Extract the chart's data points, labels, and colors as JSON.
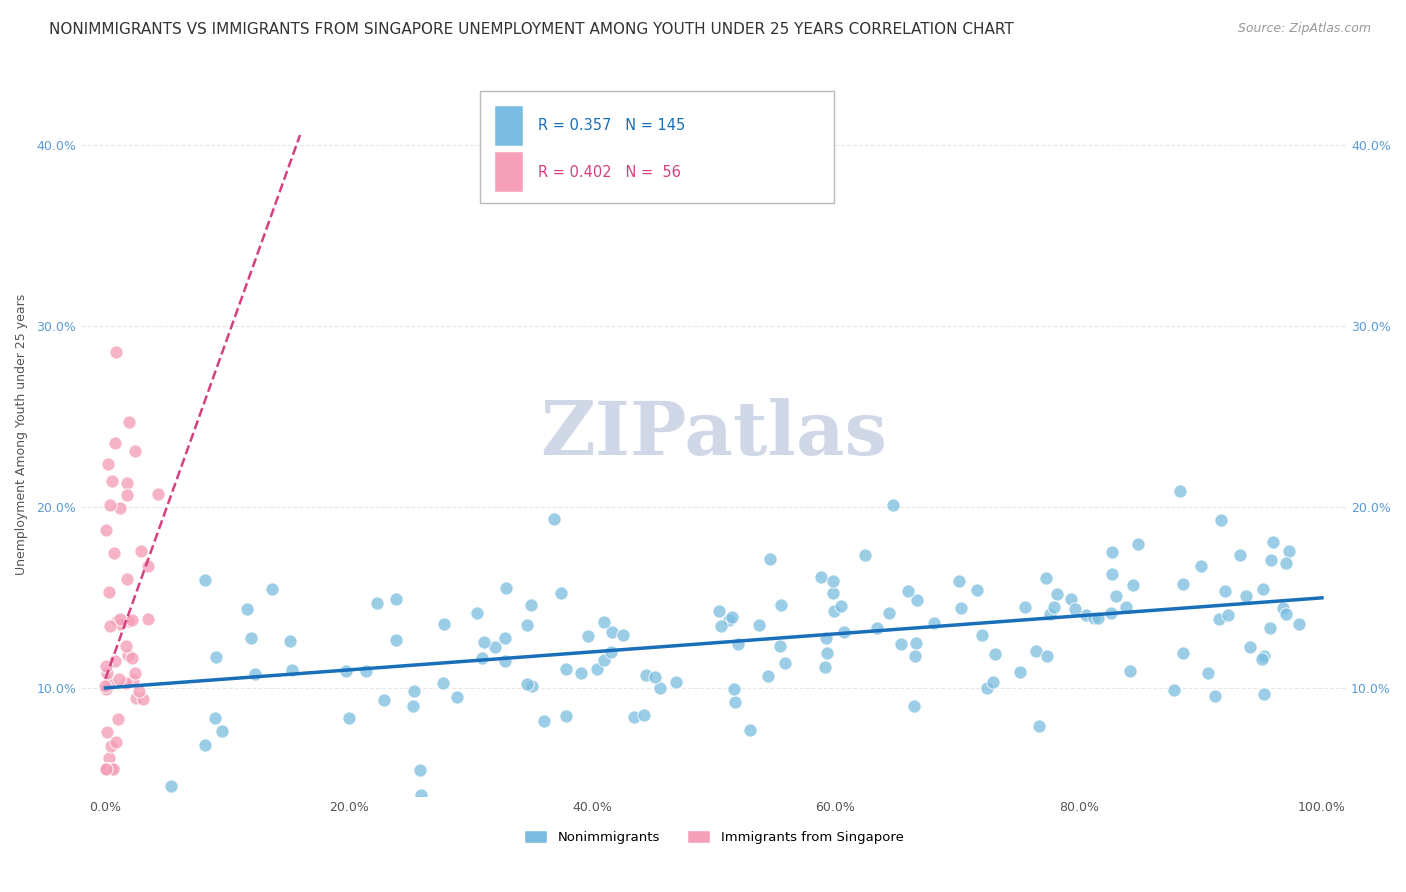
{
  "title": "NONIMMIGRANTS VS IMMIGRANTS FROM SINGAPORE UNEMPLOYMENT AMONG YOUTH UNDER 25 YEARS CORRELATION CHART",
  "source": "Source: ZipAtlas.com",
  "ylabel": "Unemployment Among Youth under 25 years",
  "xlim": [
    -0.02,
    1.02
  ],
  "ylim": [
    0.04,
    0.44
  ],
  "yticks": [
    0.1,
    0.2,
    0.3,
    0.4
  ],
  "ytick_labels": [
    "10.0%",
    "20.0%",
    "30.0%",
    "40.0%"
  ],
  "xticks": [
    0.0,
    0.2,
    0.4,
    0.6,
    0.8,
    1.0
  ],
  "xtick_labels": [
    "0.0%",
    "20.0%",
    "40.0%",
    "60.0%",
    "80.0%",
    "100.0%"
  ],
  "blue_color": "#7bbde0",
  "pink_color": "#f4a0b8",
  "blue_line_color": "#1a6fba",
  "pink_line_color": "#d44080",
  "watermark": "ZIPatlas",
  "watermark_color": "#d0d8e8",
  "R1": 0.357,
  "N1": 145,
  "R2": 0.402,
  "N2": 56,
  "blue_seed": 7,
  "pink_seed": 13,
  "title_fontsize": 11,
  "source_fontsize": 9,
  "label_fontsize": 9,
  "tick_fontsize": 9,
  "tick_color_y": "#5b9bd5",
  "tick_color_x": "#555555",
  "legend_color1": "#7bbde0",
  "legend_color2": "#f4a0b8",
  "legend_text_color1": "#1a6fba",
  "legend_text_color2": "#d44080"
}
